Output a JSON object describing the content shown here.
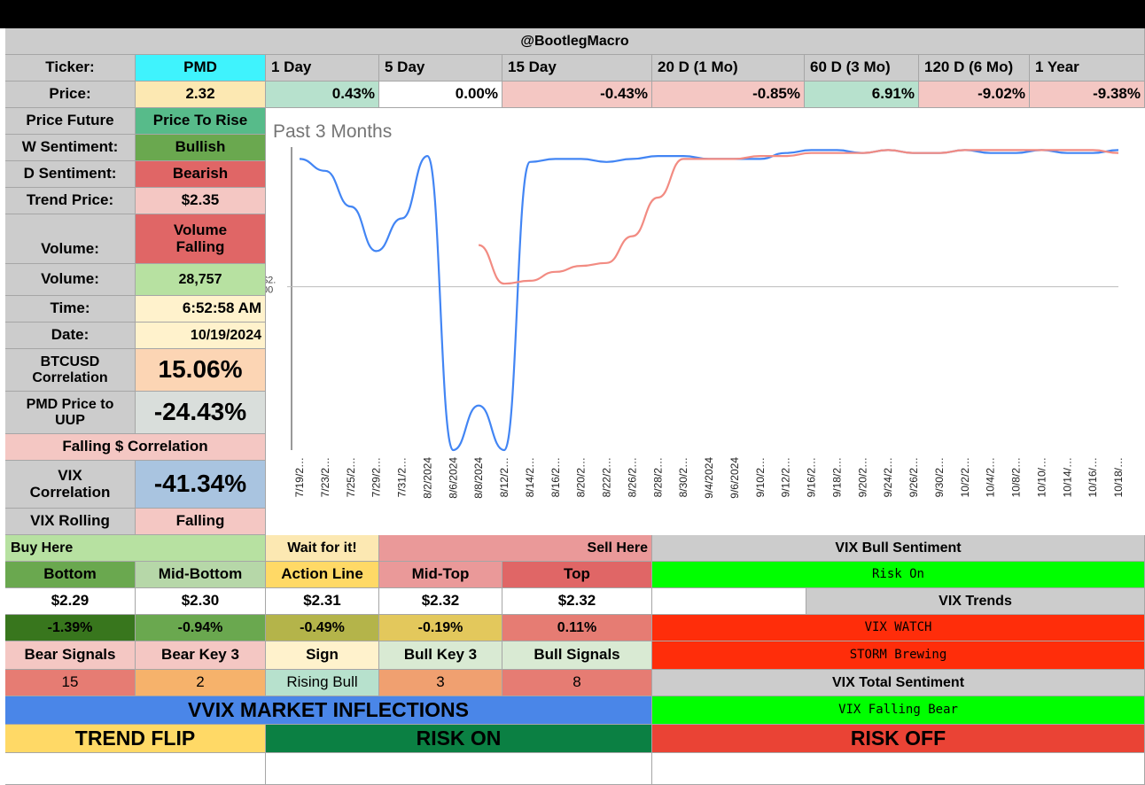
{
  "header": {
    "title": "@BootlegMacro"
  },
  "periods": {
    "labels": [
      "1 Day",
      "5 Day",
      "15 Day",
      "20 D (1 Mo)",
      "60 D (3 Mo)",
      "120 D (6 Mo)",
      "1 Year"
    ],
    "values": [
      "0.43%",
      "0.00%",
      "-0.43%",
      "-0.85%",
      "6.91%",
      "-9.02%",
      "-9.38%"
    ],
    "colors": [
      "#b7e1cd",
      "#ffffff",
      "#f4c7c3",
      "#f4c7c3",
      "#b7e1cd",
      "#f4c7c3",
      "#f4c7c3"
    ]
  },
  "info": {
    "ticker_label": "Ticker:",
    "ticker_value": "PMD",
    "price_label": "Price:",
    "price_value": "2.32",
    "price_future_label": "Price Future",
    "price_future_value": "Price To Rise",
    "w_sentiment_label": "W Sentiment:",
    "w_sentiment_value": "Bullish",
    "d_sentiment_label": "D Sentiment:",
    "d_sentiment_value": "Bearish",
    "trend_price_label": "Trend Price:",
    "trend_price_value": "$2.35",
    "volume_trend_label": "Volume:",
    "volume_trend_value_1": "Volume",
    "volume_trend_value_2": "Falling",
    "volume_label": "Volume:",
    "volume_value": "28,757",
    "time_label": "Time:",
    "time_value": "6:52:58 AM",
    "date_label": "Date:",
    "date_value": "10/19/2024",
    "btc_label_1": "BTCUSD",
    "btc_label_2": "Correlation",
    "btc_value": "15.06%",
    "uup_label_1": "PMD Price to",
    "uup_label_2": "UUP",
    "uup_value": "-24.43%",
    "falling_corr": "Falling $ Correlation",
    "vix_corr_label_1": "VIX",
    "vix_corr_label_2": "Correlation",
    "vix_corr_value": "-41.34%",
    "vix_rolling_label": "VIX Rolling",
    "vix_rolling_value": "Falling"
  },
  "chart_data": {
    "type": "line",
    "title": "Past 3 Months",
    "y_tick_label": "$2.\n00",
    "x": [
      "7/19/2…",
      "7/23/2…",
      "7/25/2…",
      "7/29/2…",
      "7/31/2…",
      "8/2/2024",
      "8/6/2024",
      "8/8/2024",
      "8/12/2…",
      "8/14/2…",
      "8/16/2…",
      "8/20/2…",
      "8/22/2…",
      "8/26/2…",
      "8/28/2…",
      "8/30/2…",
      "9/4/2024",
      "9/6/2024",
      "9/10/2…",
      "9/12/2…",
      "9/16/2…",
      "9/18/2…",
      "9/20/2…",
      "9/24/2…",
      "9/26/2…",
      "9/30/2…",
      "10/2/2…",
      "10/4/2…",
      "10/8/2…",
      "10/10/…",
      "10/14/…",
      "10/16/…",
      "10/18/…"
    ],
    "series": [
      {
        "color": "#4285f4",
        "values": [
          2.43,
          2.39,
          2.27,
          2.12,
          2.23,
          2.44,
          1.45,
          1.6,
          1.45,
          2.42,
          2.43,
          2.43,
          2.42,
          2.43,
          2.44,
          2.44,
          2.43,
          2.43,
          2.43,
          2.45,
          2.46,
          2.46,
          2.45,
          2.46,
          2.45,
          2.45,
          2.46,
          2.45,
          2.45,
          2.46,
          2.45,
          2.45,
          2.46
        ]
      },
      {
        "color": "#f28b82",
        "values": [
          null,
          null,
          null,
          null,
          null,
          null,
          null,
          2.14,
          2.01,
          2.02,
          2.05,
          2.07,
          2.08,
          2.17,
          2.3,
          2.43,
          2.43,
          2.43,
          2.44,
          2.44,
          2.45,
          2.45,
          2.45,
          2.46,
          2.45,
          2.45,
          2.46,
          2.46,
          2.46,
          2.46,
          2.46,
          2.46,
          2.45
        ]
      }
    ],
    "y_reference": 2.0
  },
  "levels": {
    "buy_here": "Buy Here",
    "wait": "Wait for it!",
    "sell_here": "Sell Here",
    "headers": [
      "Bottom",
      "Mid-Bottom",
      "Action Line",
      "Mid-Top",
      "Top"
    ],
    "prices": [
      "$2.29",
      "$2.30",
      "$2.31",
      "$2.32",
      "$2.32"
    ],
    "pcts": [
      "-1.39%",
      "-0.94%",
      "-0.49%",
      "-0.19%",
      "0.11%"
    ]
  },
  "signals": {
    "headers": [
      "Bear Signals",
      "Bear Key 3",
      "Sign",
      "Bull Key 3",
      "Bull Signals"
    ],
    "values": [
      "15",
      "2",
      "Rising Bull",
      "3",
      "8"
    ]
  },
  "vix": {
    "bull_sentiment_label": "VIX Bull Sentiment",
    "bull_sentiment_value": "Risk On",
    "trends_label": "VIX Trends",
    "watch": "VIX WATCH",
    "storm": "STORM Brewing",
    "total_label": "VIX Total Sentiment",
    "total_value": "VIX Falling Bear"
  },
  "inflections": {
    "title": "VVIX MARKET INFLECTIONS",
    "trend_flip": "TREND FLIP",
    "risk_on": "RISK ON",
    "risk_off": "RISK OFF"
  }
}
